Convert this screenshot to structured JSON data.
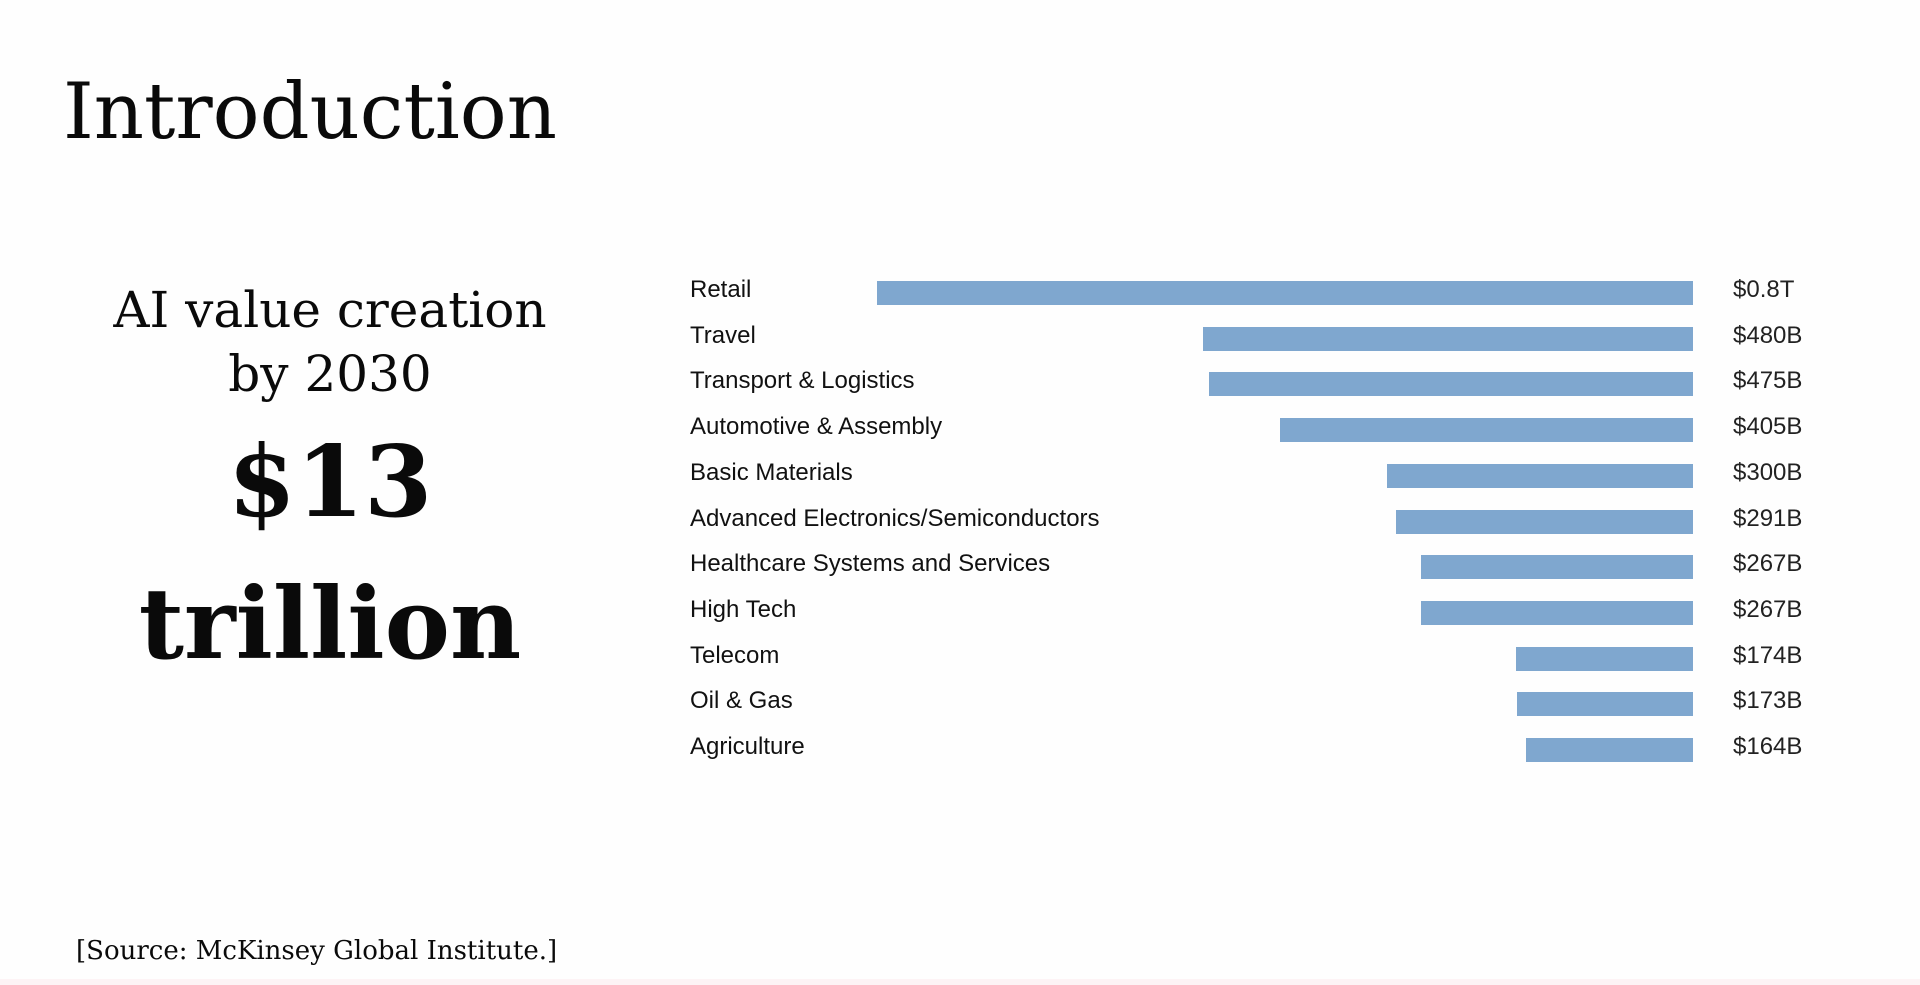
{
  "slide": {
    "title": "Introduction",
    "subtitle_line1": "AI value creation",
    "subtitle_line2": "by 2030",
    "headline_line1": "$13",
    "headline_line2": "trillion",
    "source": "[Source: McKinsey Global Institute.]"
  },
  "chart_data": {
    "type": "bar",
    "orientation": "horizontal",
    "title": "",
    "xlabel": "",
    "ylabel": "",
    "bar_color": "#7fa7cf",
    "grid": false,
    "categories": [
      "Retail",
      "Travel",
      "Transport & Logistics",
      "Automotive & Assembly",
      "Basic Materials",
      "Advanced Electronics/Semiconductors",
      "Healthcare Systems and Services",
      "High Tech",
      "Telecom",
      "Oil & Gas",
      "Agriculture"
    ],
    "values": [
      800,
      480,
      475,
      405,
      300,
      291,
      267,
      267,
      174,
      173,
      164
    ],
    "value_labels": [
      "$0.8T",
      "$480B",
      "$475B",
      "$405B",
      "$300B",
      "$291B",
      "$267B",
      "$267B",
      "$174B",
      "$173B",
      "$164B"
    ],
    "xlim": [
      0,
      800
    ]
  }
}
